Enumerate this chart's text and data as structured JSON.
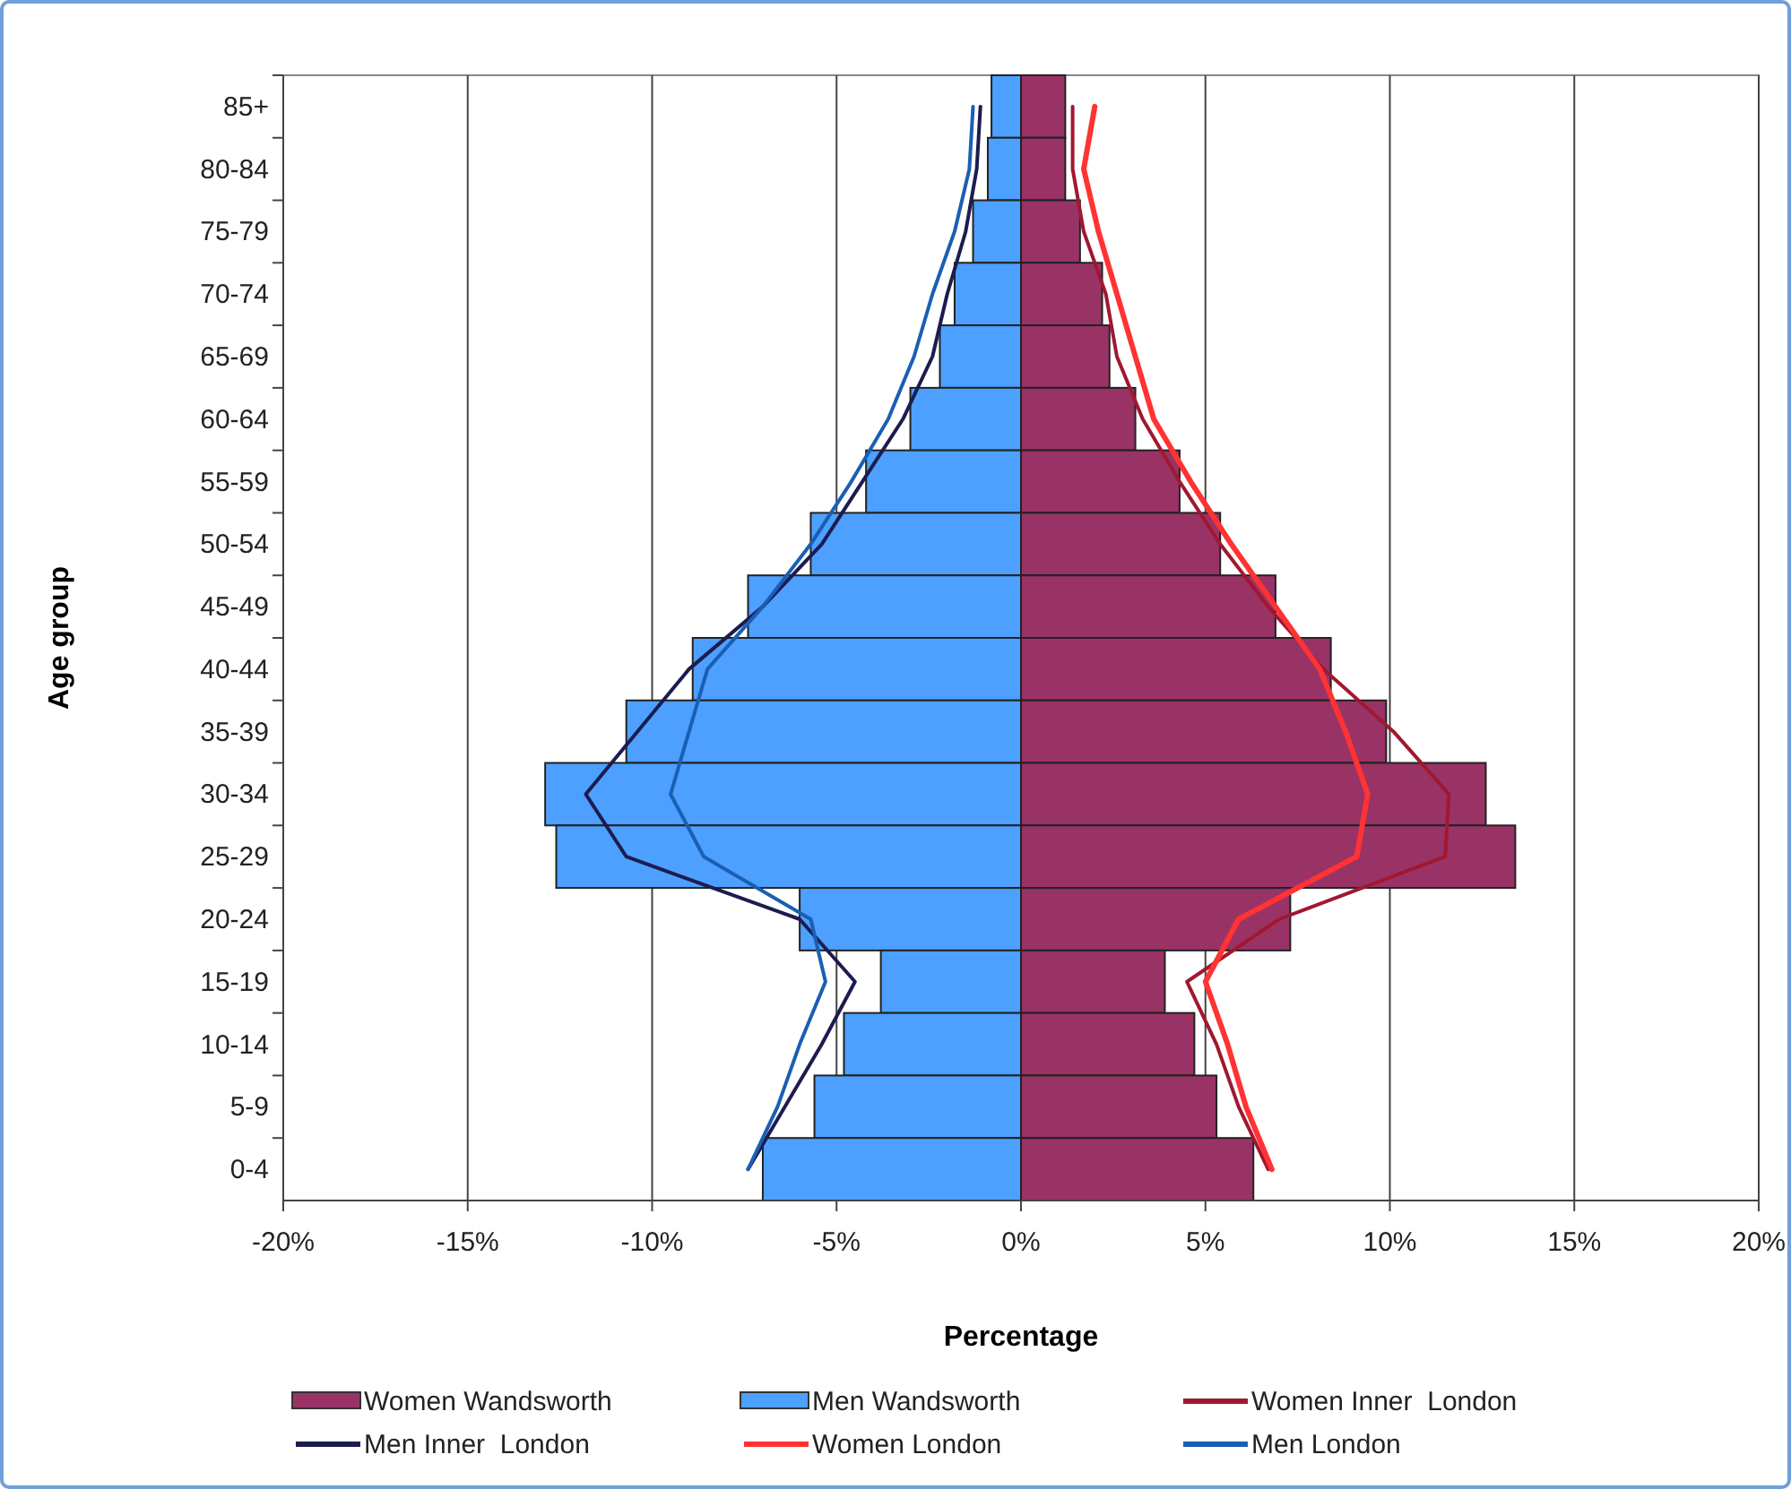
{
  "chart_data": {
    "type": "bar",
    "orientation": "horizontal",
    "xlabel": "Percentage",
    "ylabel": "Age group",
    "categories": [
      "85+",
      "80-84",
      "75-79",
      "70-74",
      "65-69",
      "60-64",
      "55-59",
      "50-54",
      "45-49",
      "40-44",
      "35-39",
      "30-34",
      "25-29",
      "20-24",
      "15-19",
      "10-14",
      "5-9",
      "0-4"
    ],
    "series": [
      {
        "name": "Women Wandsworth",
        "color": "#993366",
        "values": [
          1.2,
          1.2,
          1.6,
          2.2,
          2.4,
          3.1,
          4.3,
          5.4,
          6.9,
          8.4,
          9.9,
          12.6,
          13.4,
          7.3,
          3.9,
          4.7,
          5.3,
          6.3
        ]
      },
      {
        "name": "Men Wandsworth",
        "color": "#4da0ff",
        "values": [
          -0.8,
          -0.9,
          -1.3,
          -1.8,
          -2.2,
          -3.0,
          -4.2,
          -5.7,
          -7.4,
          -8.9,
          -10.7,
          -12.9,
          -12.6,
          -6.0,
          -3.8,
          -4.8,
          -5.6,
          -7.0
        ]
      },
      {
        "name": "Women Inner  London",
        "type": "line",
        "color": "#a01830",
        "values": [
          1.4,
          1.4,
          1.7,
          2.3,
          2.6,
          3.3,
          4.3,
          5.4,
          6.7,
          8.2,
          10.1,
          11.6,
          11.5,
          7.0,
          4.5,
          5.3,
          5.9,
          6.7
        ]
      },
      {
        "name": "Men Inner  London",
        "type": "line",
        "color": "#1c1c50",
        "values": [
          -1.1,
          -1.2,
          -1.5,
          -2.0,
          -2.4,
          -3.2,
          -4.3,
          -5.4,
          -7.0,
          -9.0,
          -10.4,
          -11.8,
          -10.7,
          -6.0,
          -4.5,
          -5.4,
          -6.4,
          -7.4
        ]
      },
      {
        "name": "Women London",
        "type": "line",
        "color": "#ff3333",
        "values": [
          2.0,
          1.7,
          2.1,
          2.6,
          3.1,
          3.6,
          4.6,
          5.7,
          6.9,
          8.1,
          8.8,
          9.4,
          9.1,
          5.9,
          5.0,
          5.6,
          6.1,
          6.8
        ]
      },
      {
        "name": "Men London",
        "type": "line",
        "color": "#1a5fb4",
        "values": [
          -1.3,
          -1.4,
          -1.8,
          -2.4,
          -2.9,
          -3.6,
          -4.6,
          -5.7,
          -7.0,
          -8.5,
          -9.0,
          -9.5,
          -8.6,
          -5.7,
          -5.3,
          -6.0,
          -6.6,
          -7.4
        ]
      }
    ],
    "xlim": [
      -20,
      20
    ],
    "xticks": [
      {
        "value": -20,
        "label": "-20%"
      },
      {
        "value": -15,
        "label": "-15%"
      },
      {
        "value": -10,
        "label": "-10%"
      },
      {
        "value": -5,
        "label": "-5%"
      },
      {
        "value": 0,
        "label": "0%"
      },
      {
        "value": 5,
        "label": "5%"
      },
      {
        "value": 10,
        "label": "10%"
      },
      {
        "value": 15,
        "label": "15%"
      },
      {
        "value": 20,
        "label": "20%"
      }
    ],
    "stacked": true,
    "grid": "x",
    "legend": "bottom"
  }
}
